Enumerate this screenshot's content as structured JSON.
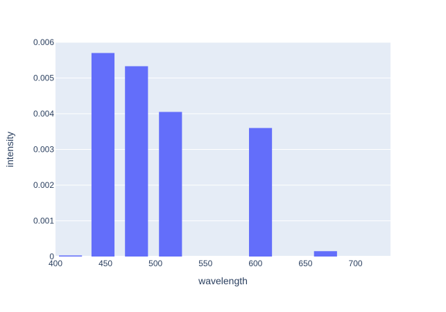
{
  "chart_data": {
    "type": "bar",
    "x": [
      415,
      447.5,
      481,
      515,
      605,
      670
    ],
    "values": [
      3e-05,
      0.0057,
      0.00533,
      0.00405,
      0.0036,
      0.00015
    ],
    "bar_width": 23,
    "xlabel": "wavelength",
    "ylabel": "intensity",
    "xlim": [
      400,
      735
    ],
    "ylim": [
      0,
      0.006
    ],
    "xticks": [
      400,
      450,
      500,
      550,
      600,
      650,
      700
    ],
    "yticks": [
      0,
      0.001,
      0.002,
      0.003,
      0.004,
      0.005,
      0.006
    ],
    "ytick_labels": [
      "0",
      "0.001",
      "0.002",
      "0.003",
      "0.004",
      "0.005",
      "0.006"
    ],
    "grid": true,
    "colors": {
      "bar": "#636efa",
      "plot_bg": "#e5ecf6",
      "grid": "#ffffff",
      "text": "#2a3f5f"
    }
  }
}
